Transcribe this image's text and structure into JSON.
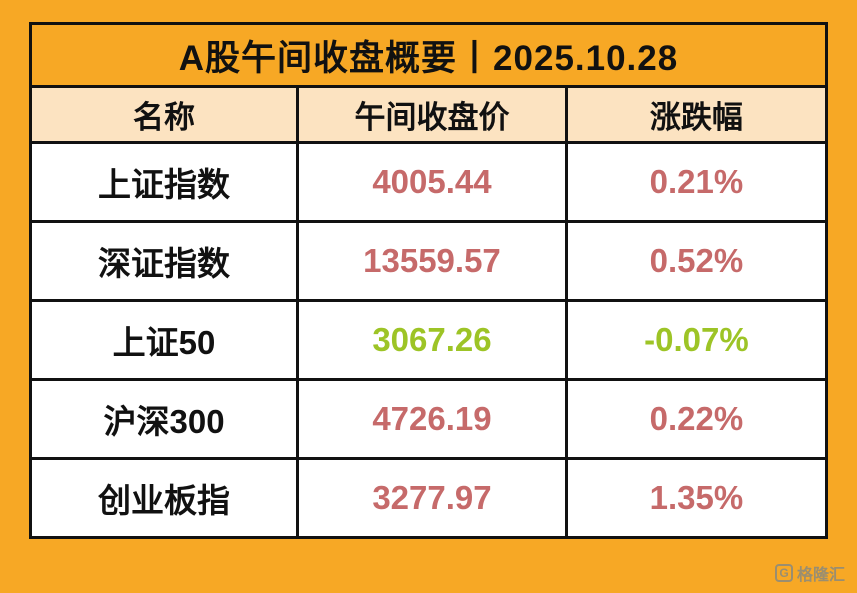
{
  "title": "A股午间收盘概要丨2025.10.28",
  "table": {
    "headers": [
      "名称",
      "午间收盘价",
      "涨跌幅"
    ],
    "rows": [
      {
        "name": "上证指数",
        "price": "4005.44",
        "change": "0.21%",
        "direction": "up"
      },
      {
        "name": "深证指数",
        "price": "13559.57",
        "change": "0.52%",
        "direction": "up"
      },
      {
        "name": "上证50",
        "price": "3067.26",
        "change": "-0.07%",
        "direction": "down"
      },
      {
        "name": "沪深300",
        "price": "4726.19",
        "change": "0.22%",
        "direction": "up"
      },
      {
        "name": "创业板指",
        "price": "3277.97",
        "change": "1.35%",
        "direction": "up"
      }
    ]
  },
  "chart_data": {
    "type": "table",
    "title": "A股午间收盘概要丨2025.10.28",
    "columns": [
      "名称",
      "午间收盘价",
      "涨跌幅"
    ],
    "rows": [
      [
        "上证指数",
        4005.44,
        "0.21%"
      ],
      [
        "深证指数",
        13559.57,
        "0.52%"
      ],
      [
        "上证50",
        3067.26,
        "-0.07%"
      ],
      [
        "沪深300",
        4726.19,
        "0.22%"
      ],
      [
        "创业板指",
        3277.97,
        "1.35%"
      ]
    ],
    "notes": "up moves shown in red, down moves shown in green (A-share convention)"
  },
  "colors": {
    "background": "#F7A825",
    "header_bg": "#FCE3C1",
    "up": "#C66A6A",
    "down": "#9DC426"
  },
  "watermark": {
    "text": "格隆汇",
    "badge": "G"
  }
}
